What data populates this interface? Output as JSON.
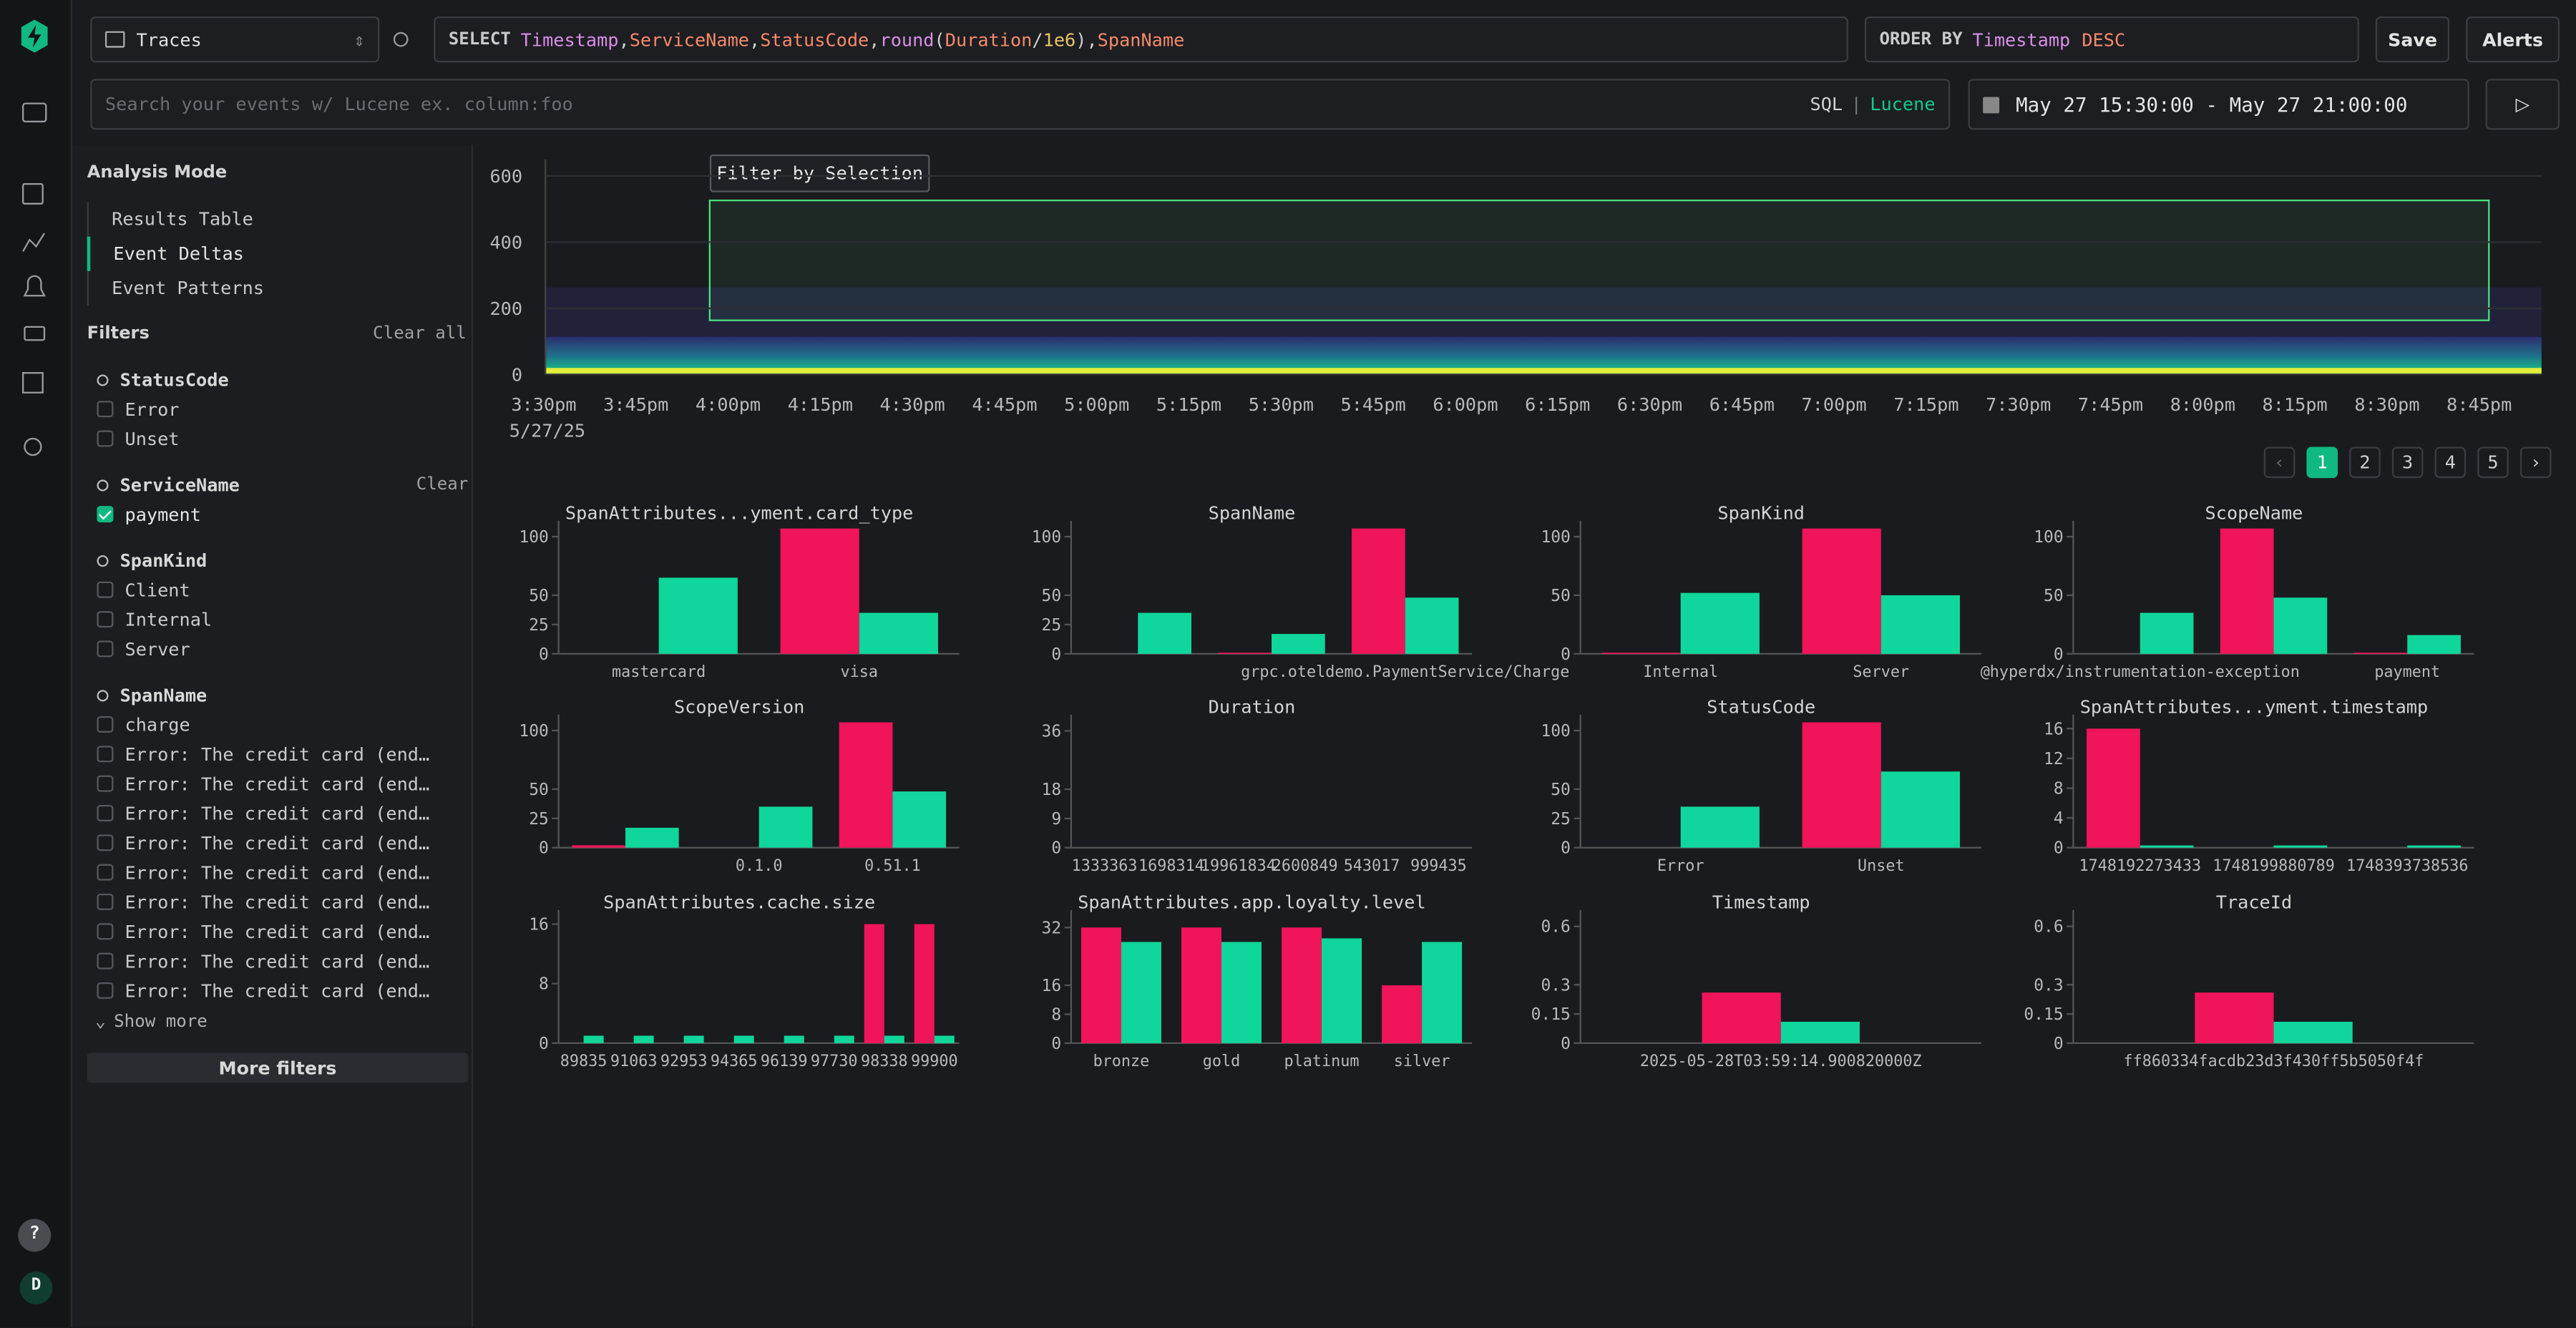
{
  "app": {
    "help": "?",
    "avatar": "D"
  },
  "source": "Traces",
  "select": {
    "keyword": "SELECT",
    "tokens": [
      {
        "text": "Timestamp",
        "color": "#d98ee6"
      },
      {
        "text": ",",
        "color": "#d0d0d0"
      },
      {
        "text": "ServiceName",
        "color": "#f58a6a"
      },
      {
        "text": ",",
        "color": "#d0d0d0"
      },
      {
        "text": "StatusCode",
        "color": "#f58a6a"
      },
      {
        "text": ",",
        "color": "#d0d0d0"
      },
      {
        "text": "round",
        "color": "#d98ee6"
      },
      {
        "text": "(",
        "color": "#d0d0d0"
      },
      {
        "text": "Duration",
        "color": "#f58a6a"
      },
      {
        "text": "/",
        "color": "#d0d0d0"
      },
      {
        "text": "1e6",
        "color": "#e8c468"
      },
      {
        "text": "),",
        "color": "#d0d0d0"
      },
      {
        "text": "SpanName",
        "color": "#f58a6a"
      }
    ]
  },
  "order_by": {
    "keyword": "ORDER BY",
    "tokens": [
      {
        "text": "Timestamp",
        "color": "#d98ee6"
      },
      {
        "text": "DESC",
        "color": "#f58a6a"
      }
    ]
  },
  "buttons": {
    "save": "Save",
    "alerts": "Alerts"
  },
  "search": {
    "placeholder": "Search your events w/ Lucene ex. column:foo",
    "sql": "SQL",
    "separator": "|",
    "lucene": "Lucene"
  },
  "time_range": "May 27 15:30:00 - May 27 21:00:00",
  "analysis": {
    "title": "Analysis Mode",
    "modes": [
      "Results Table",
      "Event Deltas",
      "Event Patterns"
    ],
    "active": 1
  },
  "filters": {
    "title": "Filters",
    "clear_all": "Clear all",
    "groups": [
      {
        "name": "StatusCode",
        "options": [
          {
            "label": "Error",
            "checked": false
          },
          {
            "label": "Unset",
            "checked": false
          }
        ]
      },
      {
        "name": "ServiceName",
        "clear": "Clear",
        "options": [
          {
            "label": "payment",
            "checked": true
          }
        ]
      },
      {
        "name": "SpanKind",
        "options": [
          {
            "label": "Client",
            "checked": false
          },
          {
            "label": "Internal",
            "checked": false
          },
          {
            "label": "Server",
            "checked": false
          }
        ]
      },
      {
        "name": "SpanName",
        "options": [
          {
            "label": "charge",
            "checked": false
          },
          {
            "label": "Error: The credit card (end…",
            "checked": false
          },
          {
            "label": "Error: The credit card (end…",
            "checked": false
          },
          {
            "label": "Error: The credit card (end…",
            "checked": false
          },
          {
            "label": "Error: The credit card (end…",
            "checked": false
          },
          {
            "label": "Error: The credit card (end…",
            "checked": false
          },
          {
            "label": "Error: The credit card (end…",
            "checked": false
          },
          {
            "label": "Error: The credit card (end…",
            "checked": false
          },
          {
            "label": "Error: The credit card (end…",
            "checked": false
          },
          {
            "label": "Error: The credit card (end…",
            "checked": false
          }
        ]
      }
    ],
    "show_more": "Show more",
    "more_filters": "More filters"
  },
  "heatmap": {
    "type": "heatmap",
    "tooltip": "Filter by Selection",
    "ylim": [
      0,
      650
    ],
    "yticks": [
      0,
      200,
      400,
      600
    ],
    "categories": [
      "3:30pm",
      "3:45pm",
      "4:00pm",
      "4:15pm",
      "4:30pm",
      "4:45pm",
      "5:00pm",
      "5:15pm",
      "5:30pm",
      "5:45pm",
      "6:00pm",
      "6:15pm",
      "6:30pm",
      "6:45pm",
      "7:00pm",
      "7:15pm",
      "7:30pm",
      "7:45pm",
      "8:00pm",
      "8:15pm",
      "8:30pm",
      "8:45pm"
    ],
    "date": "5/27/25"
  },
  "pagination": {
    "pages": [
      1,
      2,
      3,
      4,
      5
    ],
    "active": 0
  },
  "charts": [
    {
      "type": "bar",
      "title": "SpanAttributes...yment.card_type",
      "categories": [
        "mastercard",
        "visa"
      ],
      "ylim": [
        0,
        108
      ],
      "yticks": [
        0,
        25,
        50,
        100
      ],
      "series": [
        {
          "color": "#f0145a",
          "values": [
            0,
            107
          ]
        },
        {
          "color": "#0fd69a",
          "values": [
            65,
            35
          ]
        }
      ]
    },
    {
      "type": "bar",
      "title": "SpanName",
      "categories": [
        null,
        null,
        "grpc.oteldemo.PaymentService/Charge"
      ],
      "ylim": [
        0,
        108
      ],
      "yticks": [
        0,
        25,
        50,
        100
      ],
      "series": [
        {
          "color": "#f0145a",
          "values": [
            0,
            1,
            107
          ]
        },
        {
          "color": "#0fd69a",
          "values": [
            35,
            17,
            48
          ]
        }
      ]
    },
    {
      "type": "bar",
      "title": "SpanKind",
      "categories": [
        "Internal",
        "Server"
      ],
      "ylim": [
        0,
        108
      ],
      "yticks": [
        0,
        50,
        100
      ],
      "series": [
        {
          "color": "#f0145a",
          "values": [
            1,
            107
          ]
        },
        {
          "color": "#0fd69a",
          "values": [
            52,
            50
          ]
        }
      ]
    },
    {
      "type": "bar",
      "title": "ScopeName",
      "categories": [
        "@hyperdx/instrumentation-exception",
        null,
        "payment"
      ],
      "ylim": [
        0,
        108
      ],
      "yticks": [
        0,
        50,
        100
      ],
      "series": [
        {
          "color": "#f0145a",
          "values": [
            0,
            107,
            1
          ]
        },
        {
          "color": "#0fd69a",
          "values": [
            35,
            48,
            16
          ]
        }
      ]
    },
    {
      "type": "bar",
      "title": "ScopeVersion",
      "categories": [
        null,
        "0.1.0",
        "0.51.1"
      ],
      "ylim": [
        0,
        108
      ],
      "yticks": [
        0,
        25,
        50,
        100
      ],
      "series": [
        {
          "color": "#f0145a",
          "values": [
            2,
            0,
            107
          ]
        },
        {
          "color": "#0fd69a",
          "values": [
            17,
            35,
            48
          ]
        }
      ]
    },
    {
      "type": "bar",
      "title": "Duration",
      "categories": [
        "1333363",
        "1698314",
        "19961834",
        "2600849",
        "543017",
        "999435"
      ],
      "ylim": [
        0,
        39
      ],
      "yticks": [
        0,
        9,
        18,
        36
      ],
      "series": [
        {
          "color": "#f0145a",
          "values": [
            0,
            0,
            0,
            0,
            0,
            0
          ]
        },
        {
          "color": "#0fd69a",
          "values": [
            0,
            0,
            0,
            0,
            0,
            0
          ]
        }
      ]
    },
    {
      "type": "bar",
      "title": "StatusCode",
      "categories": [
        "Error",
        "Unset"
      ],
      "ylim": [
        0,
        108
      ],
      "yticks": [
        0,
        25,
        50,
        100
      ],
      "series": [
        {
          "color": "#f0145a",
          "values": [
            0,
            107
          ]
        },
        {
          "color": "#0fd69a",
          "values": [
            35,
            65
          ]
        }
      ]
    },
    {
      "type": "bar",
      "title": "SpanAttributes...yment.timestamp",
      "categories": [
        "1748192273433",
        "1748199880789",
        "1748393738536"
      ],
      "ylim": [
        0,
        17
      ],
      "yticks": [
        0,
        4,
        8,
        12,
        16
      ],
      "series": [
        {
          "color": "#f0145a",
          "values": [
            16,
            0,
            0
          ]
        },
        {
          "color": "#0fd69a",
          "values": [
            0.3,
            0.3,
            0.3
          ]
        }
      ]
    },
    {
      "type": "bar",
      "title": "SpanAttributes.cache.size",
      "categories": [
        "89835",
        "91063",
        "92953",
        "94365",
        "96139",
        "97730",
        "98338",
        "99900"
      ],
      "ylim": [
        0,
        17
      ],
      "yticks": [
        0,
        8,
        16
      ],
      "series": [
        {
          "color": "#f0145a",
          "values": [
            0,
            0,
            0,
            0,
            0,
            0,
            16,
            16
          ]
        },
        {
          "color": "#0fd69a",
          "values": [
            1,
            1,
            1,
            1,
            1,
            1,
            1,
            1
          ]
        }
      ]
    },
    {
      "type": "bar",
      "title": "SpanAttributes.app.loyalty.level",
      "categories": [
        "bronze",
        "gold",
        "platinum",
        "silver"
      ],
      "ylim": [
        0,
        35
      ],
      "yticks": [
        0,
        8,
        16,
        32
      ],
      "series": [
        {
          "color": "#f0145a",
          "values": [
            32,
            32,
            32,
            16
          ]
        },
        {
          "color": "#0fd69a",
          "values": [
            28,
            28,
            29,
            28
          ]
        }
      ]
    },
    {
      "type": "bar",
      "title": "Timestamp",
      "categories": [
        "2025-05-28T03:59:14.900820000Z"
      ],
      "ylim": [
        0,
        0.65
      ],
      "yticks": [
        0,
        0.15,
        0.3,
        0.6
      ],
      "series": [
        {
          "color": "#f0145a",
          "values": [
            0.26
          ]
        },
        {
          "color": "#0fd69a",
          "values": [
            0.11
          ]
        }
      ]
    },
    {
      "type": "bar",
      "title": "TraceId",
      "categories": [
        "ff860334facdb23d3f430ff5b5050f4f"
      ],
      "ylim": [
        0,
        0.65
      ],
      "yticks": [
        0,
        0.15,
        0.3,
        0.6
      ],
      "series": [
        {
          "color": "#f0145a",
          "values": [
            0.26
          ]
        },
        {
          "color": "#0fd69a",
          "values": [
            0.11
          ]
        }
      ]
    }
  ]
}
